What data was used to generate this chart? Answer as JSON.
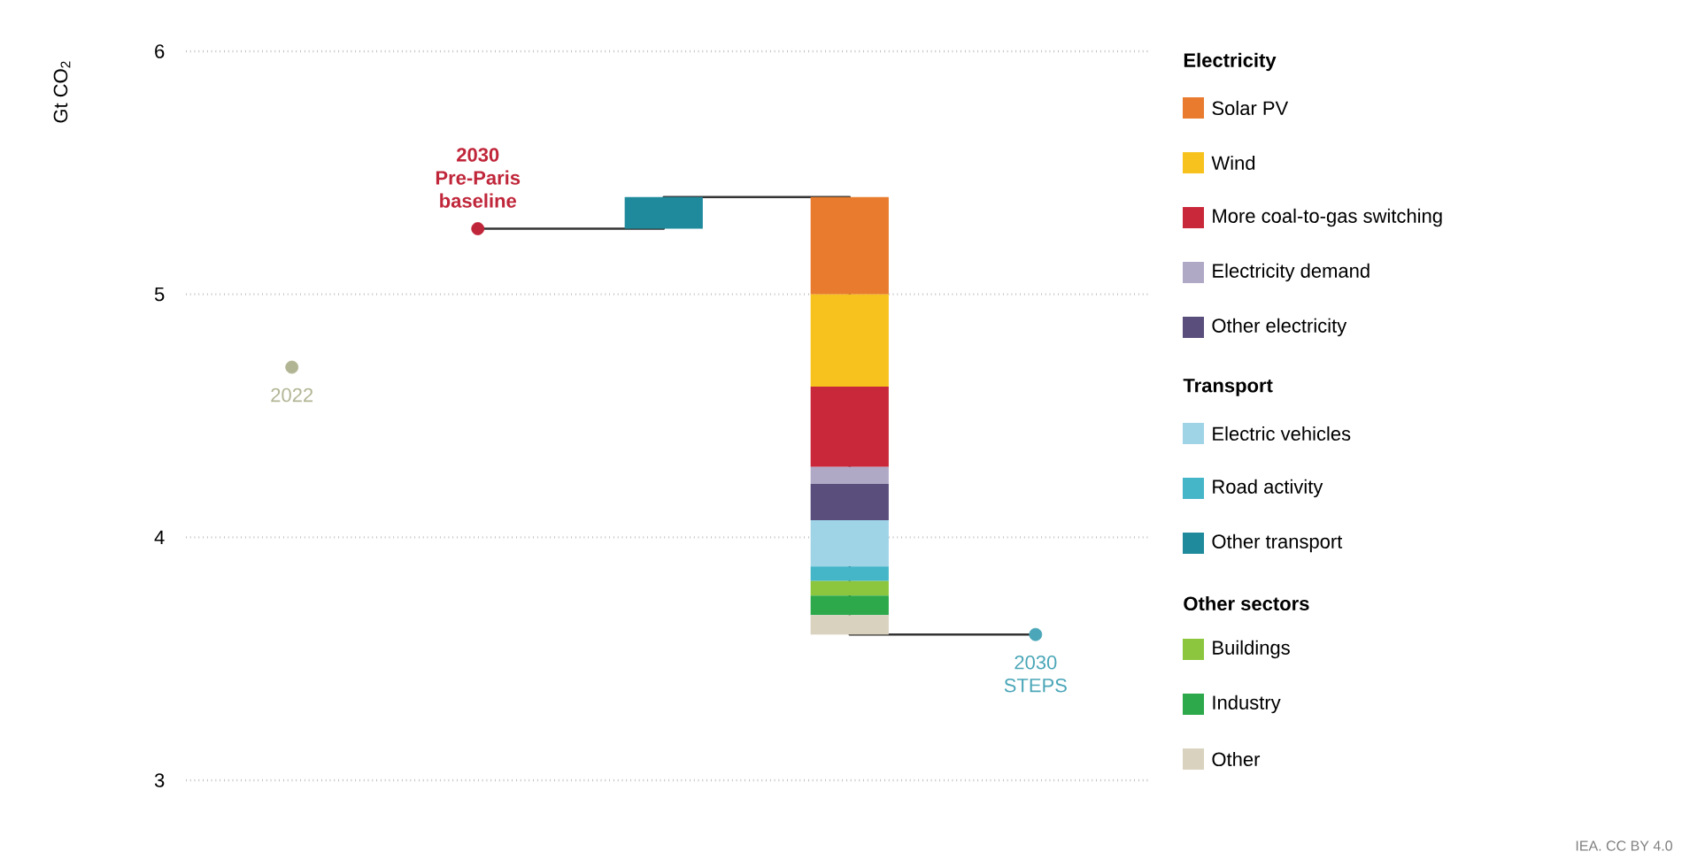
{
  "chart_data": {
    "type": "bar",
    "ylabel": "Gt CO$_{2}$",
    "categories": [
      null,
      null,
      null,
      null,
      null
    ],
    "ylim": [
      3,
      6
    ],
    "yticks": [
      3,
      4,
      5,
      6
    ],
    "grid": "y",
    "legend": "right",
    "series": [
      {
        "name": "Solar PV",
        "color": "#e87b2e",
        "values": [
          null,
          null,
          null,
          -0.4,
          null
        ],
        "base": [
          null,
          null,
          null,
          5.4,
          null
        ]
      },
      {
        "name": "Wind",
        "color": "#f7c21d",
        "values": [
          null,
          null,
          null,
          -0.38,
          null
        ],
        "base": [
          null,
          null,
          null,
          5.0,
          null
        ]
      },
      {
        "name": "More coal-to-gas switching",
        "color": "#c8283a",
        "values": [
          null,
          null,
          null,
          -0.33,
          null
        ],
        "base": [
          null,
          null,
          null,
          4.62,
          null
        ]
      },
      {
        "name": "Electricity demand",
        "color": "#b0a9c6",
        "values": [
          null,
          null,
          null,
          -0.07,
          null
        ],
        "base": [
          null,
          null,
          null,
          4.29,
          null
        ]
      },
      {
        "name": "Other electricity",
        "color": "#5a4f7c",
        "values": [
          null,
          null,
          null,
          -0.15,
          null
        ],
        "base": [
          null,
          null,
          null,
          4.22,
          null
        ]
      },
      {
        "name": "Electric vehicles",
        "color": "#9fd3e6",
        "values": [
          null,
          null,
          null,
          -0.19,
          null
        ],
        "base": [
          null,
          null,
          null,
          4.07,
          null
        ]
      },
      {
        "name": "Road activity",
        "color": "#45b6c8",
        "values": [
          null,
          null,
          null,
          -0.06,
          null
        ],
        "base": [
          null,
          null,
          null,
          3.88,
          null
        ]
      },
      {
        "name": "Other transport",
        "color": "#1f8a9c",
        "values": [
          null,
          null,
          0.13,
          null,
          null
        ],
        "base": [
          null,
          null,
          5.27,
          null,
          null
        ]
      },
      {
        "name": "Buildings",
        "color": "#8cc63f",
        "values": [
          null,
          null,
          null,
          -0.06,
          null
        ],
        "base": [
          null,
          null,
          null,
          3.82,
          null
        ]
      },
      {
        "name": "Industry",
        "color": "#2da84a",
        "values": [
          null,
          null,
          null,
          -0.08,
          null
        ],
        "base": [
          null,
          null,
          null,
          3.76,
          null
        ]
      },
      {
        "name": "Other",
        "color": "#d9d2bf",
        "values": [
          null,
          null,
          null,
          -0.08,
          null
        ],
        "base": [
          null,
          null,
          null,
          3.68,
          null
        ]
      },
      {
        "type": "step",
        "color": "#333333",
        "values": [
          null,
          5.27,
          5.4,
          3.6,
          3.6
        ]
      },
      {
        "name": "2022",
        "type": "scatter",
        "color": "#b2b594",
        "values": [
          4.7,
          null,
          null,
          null,
          null
        ]
      },
      {
        "name": "**2030 Pre-Paris baseline**",
        "type": "scatter",
        "color": "#c0263a",
        "values": [
          null,
          5.27,
          null,
          null,
          null
        ]
      },
      {
        "name": "2030 STEPS",
        "type": "scatter",
        "color": "#4aa6b8",
        "values": [
          null,
          null,
          null,
          null,
          3.6
        ]
      }
    ],
    "annotations": [
      "Electricity",
      "Transport",
      "Other sectors",
      "IEA. CC BY 4.0"
    ]
  }
}
